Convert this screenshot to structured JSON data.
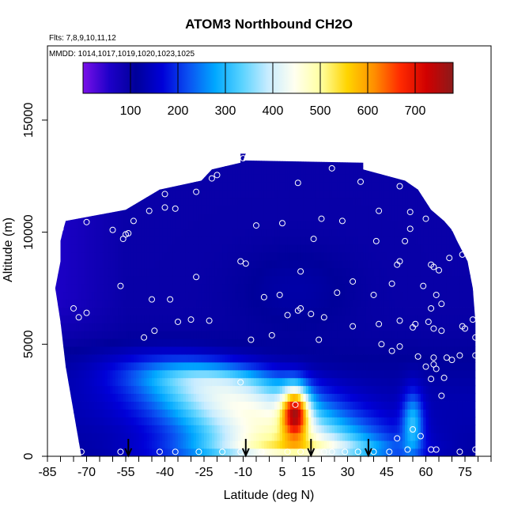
{
  "chart_data": {
    "type": "heatmap",
    "title": "ATOM3 Northbound CH2O",
    "flights_note": "Flts: 7,8,9,10,11,12",
    "dates_note": "MMDD: 1014,1017,1019,1020,1023,1025",
    "xlabel": "Latitude (deg N)",
    "ylabel": "Altitude (m)",
    "xlim": [
      -85,
      85
    ],
    "ylim": [
      0,
      17500
    ],
    "x_ticks": [
      -85,
      -70,
      -55,
      -40,
      -25,
      -10,
      5,
      15,
      30,
      45,
      60,
      75
    ],
    "x_tick_labels": [
      "-85",
      "-70",
      "-55",
      "-40",
      "-25",
      "-10",
      "5",
      "15",
      "30",
      "45",
      "60",
      "75"
    ],
    "y_ticks": [
      0,
      5000,
      10000,
      15000
    ],
    "y_tick_labels": [
      "0",
      "5000",
      "10000",
      "15000"
    ],
    "colorbar": {
      "min": 0,
      "max": 780,
      "ticks": [
        100,
        200,
        300,
        400,
        500,
        600,
        700
      ],
      "tick_labels": [
        "100",
        "200",
        "300",
        "400",
        "500",
        "600",
        "700"
      ],
      "colors": [
        "#7a10e8",
        "#1d00c8",
        "#00009a",
        "#0000d8",
        "#0a52f2",
        "#00a8ff",
        "#58d2ff",
        "#c8ecff",
        "#fffff0",
        "#ffffa0",
        "#ffd400",
        "#ff9000",
        "#ff2a00",
        "#d00000",
        "#8c1a1a"
      ]
    },
    "arrow_latitudes": [
      -54,
      -9,
      16,
      38
    ],
    "grid": false,
    "legend": "none"
  }
}
